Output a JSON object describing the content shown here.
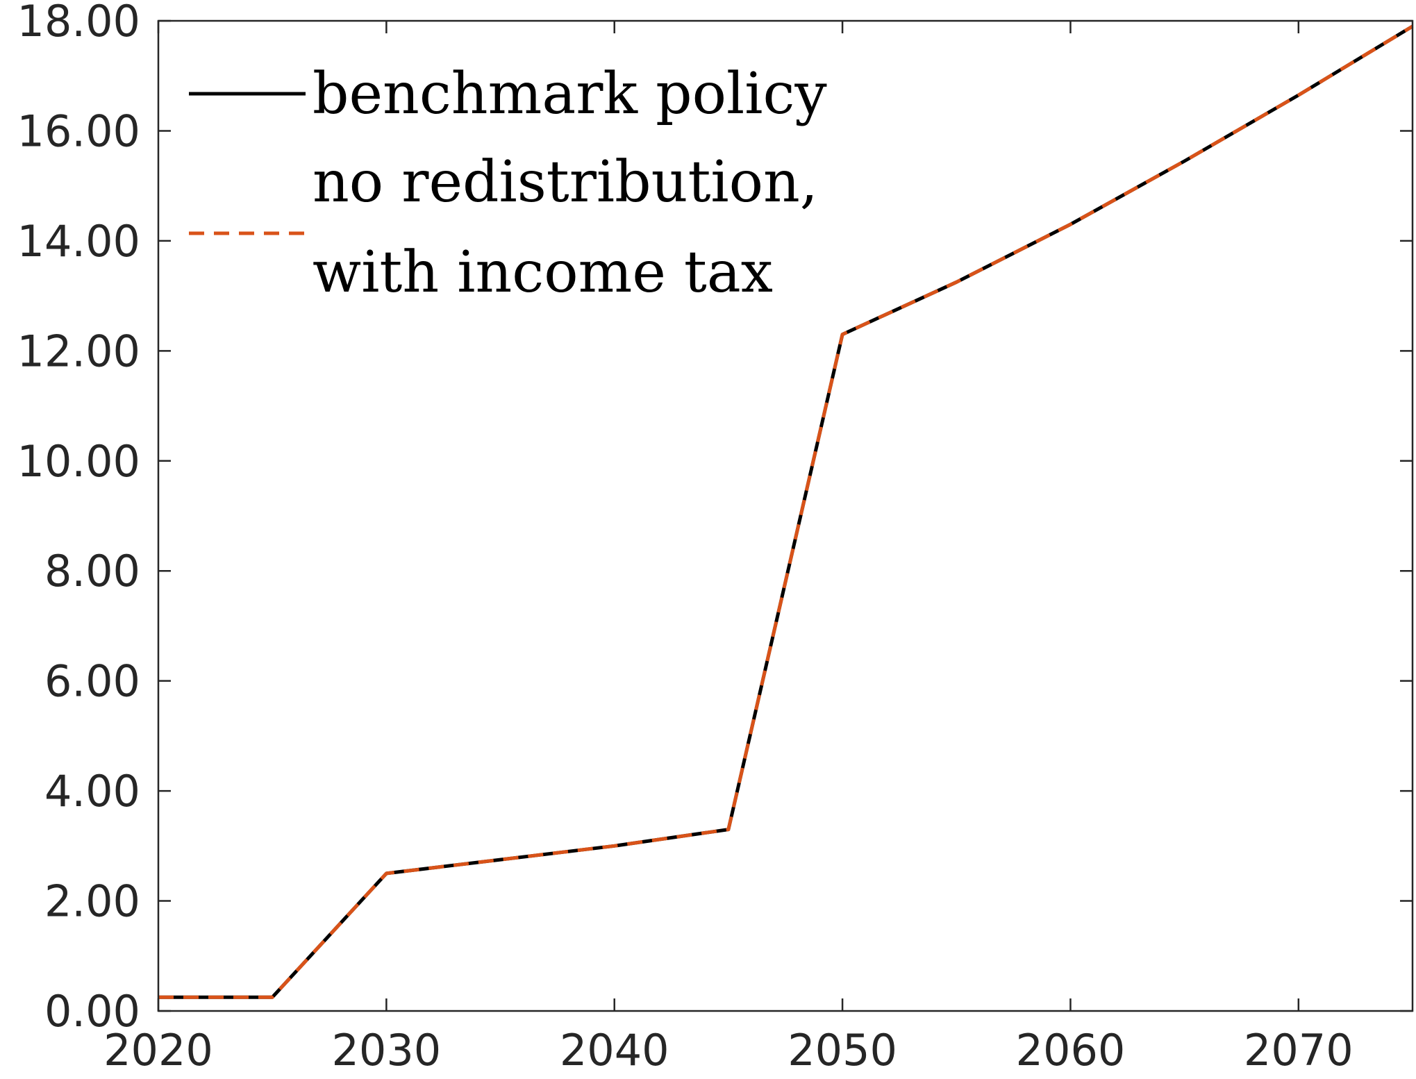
{
  "chart_data": {
    "type": "line",
    "title": "",
    "xlabel": "",
    "ylabel": "",
    "xlim": [
      2020,
      2075
    ],
    "ylim": [
      0,
      18
    ],
    "x_ticks": [
      2020,
      2030,
      2040,
      2050,
      2060,
      2070
    ],
    "x_tick_labels": [
      "2020",
      "2030",
      "2040",
      "2050",
      "2060",
      "2070"
    ],
    "y_ticks": [
      0,
      2,
      4,
      6,
      8,
      10,
      12,
      14,
      16,
      18
    ],
    "y_tick_labels": [
      "0.00",
      "2.00",
      "4.00",
      "6.00",
      "8.00",
      "10.00",
      "12.00",
      "14.00",
      "16.00",
      "18.00"
    ],
    "grid": false,
    "legend_position": "top-left",
    "x": [
      2020,
      2025,
      2030,
      2035,
      2040,
      2045,
      2050,
      2055,
      2060,
      2065,
      2070,
      2075
    ],
    "series": [
      {
        "name": "benchmark policy",
        "color": "#000000",
        "style": "solid",
        "values": [
          0.25,
          0.25,
          2.5,
          2.75,
          3.0,
          3.3,
          12.3,
          13.25,
          14.3,
          15.45,
          16.65,
          17.9
        ]
      },
      {
        "name": "no redistribution, with income tax",
        "color": "#D95319",
        "style": "dashed",
        "values": [
          0.25,
          0.25,
          2.5,
          2.75,
          3.0,
          3.3,
          12.3,
          13.25,
          14.3,
          15.45,
          16.65,
          17.9
        ]
      }
    ],
    "legend": {
      "entries": [
        {
          "lines": [
            "benchmark policy"
          ]
        },
        {
          "lines": [
            "no redistribution,",
            "with income tax"
          ]
        }
      ]
    }
  }
}
